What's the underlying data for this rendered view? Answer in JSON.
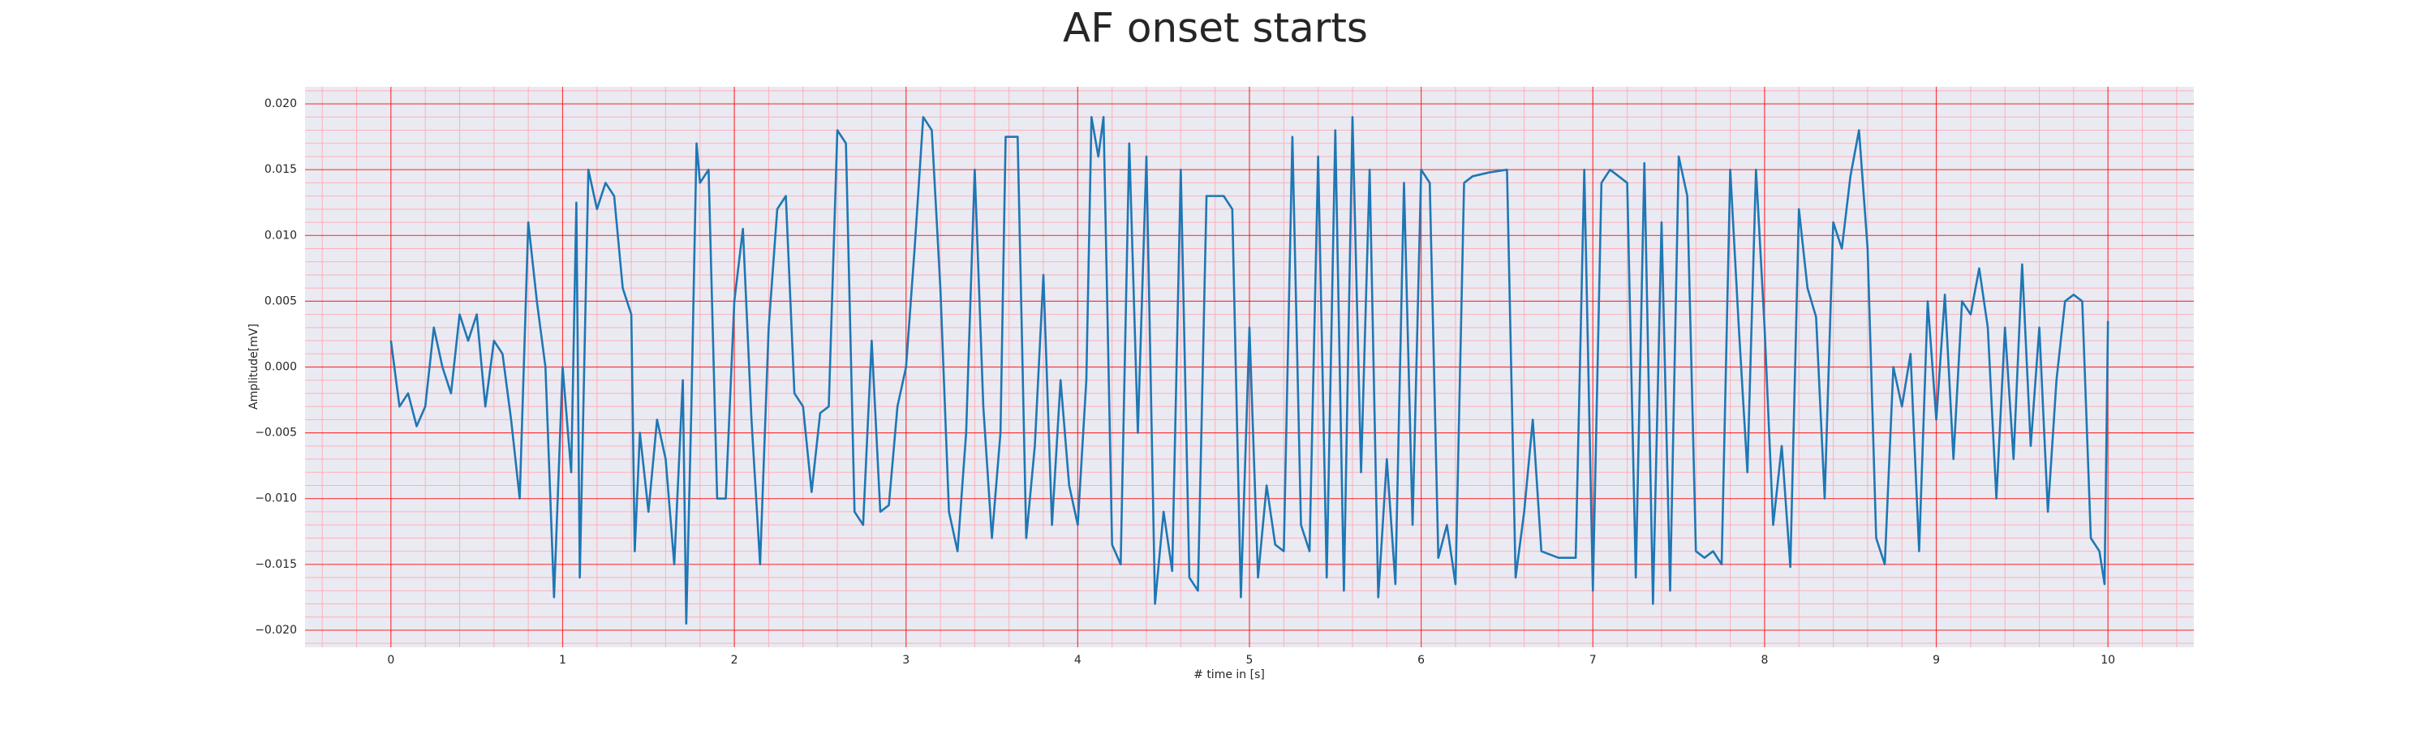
{
  "chart_data": {
    "type": "line",
    "title": "AF onset starts",
    "xlabel": "# time in [s]",
    "ylabel": "Amplitude[mV]",
    "color": "#1f77b4",
    "grid": true,
    "grid_color": "#ff0000",
    "minor_grid_color": "#ffb0b8",
    "background": "#eaeaf2",
    "xlim": [
      -0.5,
      10.5
    ],
    "ylim": [
      -0.0213,
      0.0213
    ],
    "xticks": [
      0,
      1,
      2,
      3,
      4,
      5,
      6,
      7,
      8,
      9,
      10
    ],
    "yticks": [
      {
        "value": -0.02,
        "label": "−0.020"
      },
      {
        "value": -0.015,
        "label": "−0.015"
      },
      {
        "value": -0.01,
        "label": "−0.010"
      },
      {
        "value": -0.005,
        "label": "−0.005"
      },
      {
        "value": 0,
        "label": "0.000"
      },
      {
        "value": 0.005,
        "label": "0.005"
      },
      {
        "value": 0.01,
        "label": "0.010"
      },
      {
        "value": 0.015,
        "label": "0.015"
      },
      {
        "value": 0.02,
        "label": "0.020"
      }
    ],
    "minor_xticks": [
      -0.4,
      -0.2,
      0.2,
      0.4,
      0.6,
      0.8,
      1.2,
      1.4,
      1.6,
      1.8,
      2.2,
      2.4,
      2.6,
      2.8,
      3.2,
      3.4,
      3.6,
      3.8,
      4.2,
      4.4,
      4.6,
      4.8,
      5.2,
      5.4,
      5.6,
      5.8,
      6.2,
      6.4,
      6.6,
      6.8,
      7.2,
      7.4,
      7.6,
      7.8,
      8.2,
      8.4,
      8.6,
      8.8,
      9.2,
      9.4,
      9.6,
      9.8,
      10.2,
      10.4
    ],
    "minor_yticks": [
      -0.021,
      -0.019,
      -0.018,
      -0.017,
      -0.016,
      -0.014,
      -0.013,
      -0.012,
      -0.011,
      -0.009,
      -0.008,
      -0.007,
      -0.006,
      -0.004,
      -0.003,
      -0.002,
      -0.001,
      0.001,
      0.002,
      0.003,
      0.004,
      0.006,
      0.007,
      0.008,
      0.009,
      0.011,
      0.012,
      0.013,
      0.014,
      0.016,
      0.017,
      0.018,
      0.019,
      0.021
    ],
    "x": [
      0,
      0.05,
      0.1,
      0.15,
      0.2,
      0.25,
      0.3,
      0.35,
      0.4,
      0.45,
      0.5,
      0.55,
      0.6,
      0.65,
      0.7,
      0.75,
      0.8,
      0.85,
      0.9,
      0.95,
      1.0,
      1.05,
      1.08,
      1.1,
      1.15,
      1.2,
      1.25,
      1.3,
      1.35,
      1.4,
      1.42,
      1.45,
      1.5,
      1.55,
      1.6,
      1.65,
      1.7,
      1.72,
      1.75,
      1.78,
      1.8,
      1.85,
      1.9,
      1.95,
      2.0,
      2.05,
      2.1,
      2.15,
      2.2,
      2.25,
      2.3,
      2.35,
      2.4,
      2.45,
      2.5,
      2.55,
      2.6,
      2.65,
      2.7,
      2.75,
      2.8,
      2.85,
      2.9,
      2.95,
      3.0,
      3.05,
      3.1,
      3.15,
      3.2,
      3.25,
      3.3,
      3.35,
      3.4,
      3.45,
      3.5,
      3.55,
      3.58,
      3.65,
      3.7,
      3.75,
      3.8,
      3.85,
      3.9,
      3.95,
      4.0,
      4.05,
      4.08,
      4.12,
      4.15,
      4.2,
      4.25,
      4.3,
      4.35,
      4.4,
      4.45,
      4.5,
      4.55,
      4.6,
      4.65,
      4.7,
      4.75,
      4.8,
      4.85,
      4.9,
      4.95,
      5.0,
      5.05,
      5.1,
      5.15,
      5.2,
      5.25,
      5.3,
      5.35,
      5.4,
      5.45,
      5.5,
      5.55,
      5.6,
      5.65,
      5.7,
      5.75,
      5.8,
      5.85,
      5.9,
      5.95,
      6.0,
      6.05,
      6.1,
      6.15,
      6.2,
      6.25,
      6.3,
      6.4,
      6.5,
      6.55,
      6.6,
      6.65,
      6.7,
      6.8,
      6.9,
      6.95,
      7.0,
      7.05,
      7.1,
      7.15,
      7.2,
      7.25,
      7.3,
      7.35,
      7.4,
      7.45,
      7.5,
      7.55,
      7.6,
      7.65,
      7.7,
      7.75,
      7.8,
      7.85,
      7.9,
      7.95,
      8.0,
      8.05,
      8.1,
      8.15,
      8.2,
      8.25,
      8.3,
      8.35,
      8.4,
      8.45,
      8.5,
      8.55,
      8.6,
      8.65,
      8.7,
      8.75,
      8.8,
      8.85,
      8.9,
      8.95,
      9.0,
      9.05,
      9.1,
      9.15,
      9.2,
      9.25,
      9.3,
      9.35,
      9.4,
      9.45,
      9.5,
      9.55,
      9.6,
      9.65,
      9.7,
      9.75,
      9.8,
      9.85,
      9.9,
      9.95,
      9.98,
      10.0
    ],
    "values": [
      0.002,
      -0.003,
      -0.002,
      -0.0045,
      -0.003,
      0.003,
      0.0,
      -0.002,
      0.004,
      0.002,
      0.004,
      -0.003,
      0.002,
      0.001,
      -0.004,
      -0.01,
      0.011,
      0.005,
      0.0,
      -0.0175,
      0.0,
      -0.008,
      0.0125,
      -0.016,
      0.015,
      0.012,
      0.014,
      0.013,
      0.006,
      0.004,
      -0.014,
      -0.005,
      -0.011,
      -0.004,
      -0.007,
      -0.015,
      -0.001,
      -0.0195,
      -0.003,
      0.017,
      0.014,
      0.015,
      -0.01,
      -0.01,
      0.005,
      0.0105,
      -0.004,
      -0.015,
      0.003,
      0.012,
      0.013,
      -0.002,
      -0.003,
      -0.0095,
      -0.0035,
      -0.003,
      0.018,
      0.017,
      -0.011,
      -0.012,
      0.002,
      -0.011,
      -0.0105,
      -0.003,
      0.0,
      0.009,
      0.019,
      0.018,
      0.006,
      -0.011,
      -0.014,
      -0.005,
      0.015,
      -0.003,
      -0.013,
      -0.005,
      0.0175,
      0.0175,
      -0.013,
      -0.006,
      0.007,
      -0.012,
      -0.001,
      -0.009,
      -0.012,
      -0.001,
      0.019,
      0.016,
      0.019,
      -0.0135,
      -0.015,
      0.017,
      -0.005,
      0.016,
      -0.018,
      -0.011,
      -0.0155,
      0.015,
      -0.016,
      -0.017,
      0.013,
      0.013,
      0.013,
      0.012,
      -0.0175,
      0.003,
      -0.016,
      -0.009,
      -0.0135,
      -0.014,
      0.0175,
      -0.012,
      -0.014,
      0.016,
      -0.016,
      0.018,
      -0.017,
      0.019,
      -0.008,
      0.015,
      -0.0175,
      -0.007,
      -0.0165,
      0.014,
      -0.012,
      0.015,
      0.014,
      -0.0145,
      -0.012,
      -0.0165,
      0.014,
      0.0145,
      0.0148,
      0.015,
      -0.016,
      -0.011,
      -0.004,
      -0.014,
      -0.0145,
      -0.0145,
      0.015,
      -0.017,
      0.014,
      0.015,
      0.0145,
      0.014,
      -0.016,
      0.0155,
      -0.018,
      0.011,
      -0.017,
      0.016,
      0.013,
      -0.014,
      -0.0145,
      -0.014,
      -0.015,
      0.015,
      0.003,
      -0.008,
      0.015,
      0.003,
      -0.012,
      -0.006,
      -0.0152,
      0.012,
      0.006,
      0.0038,
      -0.01,
      0.011,
      0.009,
      0.0145,
      0.018,
      0.009,
      -0.013,
      -0.015,
      0.0,
      -0.003,
      0.001,
      -0.014,
      0.005,
      -0.004,
      0.0055,
      -0.007,
      0.005,
      0.004,
      0.0075,
      0.003,
      -0.01,
      0.003,
      -0.007,
      0.0078,
      -0.006,
      0.003,
      -0.011,
      -0.001,
      0.005,
      0.0055,
      0.005,
      -0.013,
      -0.014,
      -0.0165,
      0.0035
    ]
  }
}
